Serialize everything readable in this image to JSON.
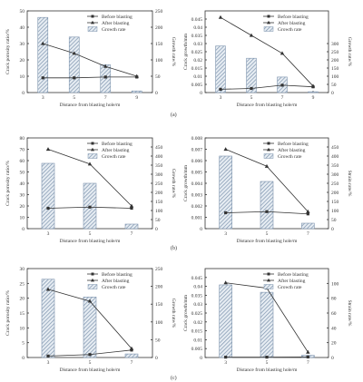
{
  "colors": {
    "bar_fill": "#9fb4c8",
    "bar_stroke": "#7d93ad",
    "line": "#333333"
  },
  "legend": {
    "before": "Before blasting",
    "after": "After blasting",
    "growth": "Growth rate"
  },
  "x_label": "Distance from blasting hole/m",
  "panel_labels": [
    "(a)",
    "(b)",
    "(c)"
  ],
  "chart_data": [
    {
      "type": "bar",
      "id": "a-left",
      "categories": [
        "3",
        "5",
        "7",
        "9"
      ],
      "ylabel_left": "Crack porosity ratio/%",
      "ylim_left": [
        0,
        50
      ],
      "yticks_left": [
        0,
        10,
        20,
        30,
        40,
        50
      ],
      "ylabel_right": "Growth rate/%",
      "ylim_right": [
        0,
        250
      ],
      "yticks_right": [
        0,
        50,
        100,
        150,
        200,
        250
      ],
      "series": [
        {
          "name": "Before blasting",
          "values": [
            9,
            9,
            9.5,
            9.5
          ]
        },
        {
          "name": "After blasting",
          "values": [
            30,
            24,
            16,
            10
          ]
        },
        {
          "name": "Growth rate",
          "values": [
            230,
            170,
            85,
            5
          ]
        }
      ]
    },
    {
      "type": "bar",
      "id": "a-right",
      "categories": [
        "3",
        "5",
        "7",
        "9"
      ],
      "ylabel_left": "Crack growth/mm",
      "ylim_left": [
        0,
        0.05
      ],
      "yticks_left": [
        0,
        0.005,
        0.01,
        0.015,
        0.02,
        0.025,
        0.03,
        0.035,
        0.04,
        0.045
      ],
      "ylabel_right": "Growth rate/%",
      "ylim_right": [
        0,
        500
      ],
      "yticks_right": [
        0,
        50,
        100,
        150,
        200,
        250,
        300
      ],
      "series": [
        {
          "name": "Before blasting",
          "values": [
            0.002,
            0.0025,
            0.0045,
            0.0035
          ]
        },
        {
          "name": "After blasting",
          "values": [
            0.046,
            0.035,
            0.024,
            0.004
          ]
        },
        {
          "name": "Growth rate",
          "values": [
            285,
            210,
            95,
            5
          ]
        }
      ]
    },
    {
      "type": "bar",
      "id": "b-left",
      "categories": [
        "3",
        "5",
        "7"
      ],
      "ylabel_left": "Crack porosity ratio/%",
      "ylim_left": [
        0,
        80
      ],
      "yticks_left": [
        0,
        10,
        20,
        30,
        40,
        50,
        60,
        70,
        80
      ],
      "ylabel_right": "Growth rate/%",
      "ylim_right": [
        0,
        500
      ],
      "yticks_right": [
        0,
        50,
        100,
        150,
        200,
        250,
        300,
        350,
        400,
        450
      ],
      "series": [
        {
          "name": "Before blasting",
          "values": [
            18,
            19,
            18
          ]
        },
        {
          "name": "After blasting",
          "values": [
            70,
            57,
            20
          ]
        },
        {
          "name": "Growth rate",
          "values": [
            360,
            250,
            25
          ]
        }
      ]
    },
    {
      "type": "bar",
      "id": "b-right",
      "categories": [
        "3",
        "5",
        "7"
      ],
      "ylabel_left": "Crack growth/mm",
      "ylim_left": [
        0,
        0.008
      ],
      "yticks_left": [
        0,
        0.001,
        0.002,
        0.003,
        0.004,
        0.005,
        0.006,
        0.007,
        0.008
      ],
      "ylabel_right": "Strain rate/%",
      "ylim_right": [
        0,
        500
      ],
      "yticks_right": [
        0,
        50,
        100,
        150,
        200,
        250,
        300,
        350,
        400,
        450
      ],
      "series": [
        {
          "name": "Before blasting",
          "values": [
            0.0014,
            0.0015,
            0.0013
          ]
        },
        {
          "name": "After blasting",
          "values": [
            0.007,
            0.0055,
            0.0015
          ]
        },
        {
          "name": "Growth rate",
          "values": [
            400,
            260,
            30
          ]
        }
      ]
    },
    {
      "type": "bar",
      "id": "c-left",
      "categories": [
        "3",
        "5",
        "7"
      ],
      "ylabel_left": "Crack porosity ratio/%",
      "ylim_left": [
        0,
        30
      ],
      "yticks_left": [
        0,
        5,
        10,
        15,
        20,
        25,
        30
      ],
      "ylabel_right": "Growth rate/%",
      "ylim_right": [
        0,
        250
      ],
      "yticks_right": [
        0,
        50,
        100,
        150,
        200,
        250
      ],
      "series": [
        {
          "name": "Before blasting",
          "values": [
            0.5,
            1,
            2.5
          ]
        },
        {
          "name": "After blasting",
          "values": [
            23,
            19,
            3
          ]
        },
        {
          "name": "Growth rate",
          "values": [
            220,
            170,
            10
          ]
        }
      ]
    },
    {
      "type": "bar",
      "id": "c-right",
      "categories": [
        "3",
        "5",
        "7"
      ],
      "ylabel_left": "Crack growth/mm",
      "ylim_left": [
        0,
        0.05
      ],
      "yticks_left": [
        0,
        0.005,
        0.01,
        0.015,
        0.02,
        0.025,
        0.03,
        0.035,
        0.04,
        0.045
      ],
      "ylabel_right": "Strain rate/%",
      "ylim_right": [
        0,
        120
      ],
      "yticks_right": [
        0,
        20,
        40,
        60,
        80,
        100
      ],
      "series": [
        {
          "name": "Before blasting",
          "values": [
            0.0002,
            0.0002,
            0.0003
          ]
        },
        {
          "name": "After blasting",
          "values": [
            0.042,
            0.039,
            0.003
          ]
        },
        {
          "name": "Growth rate",
          "values": [
            98,
            88,
            3
          ]
        }
      ]
    }
  ]
}
